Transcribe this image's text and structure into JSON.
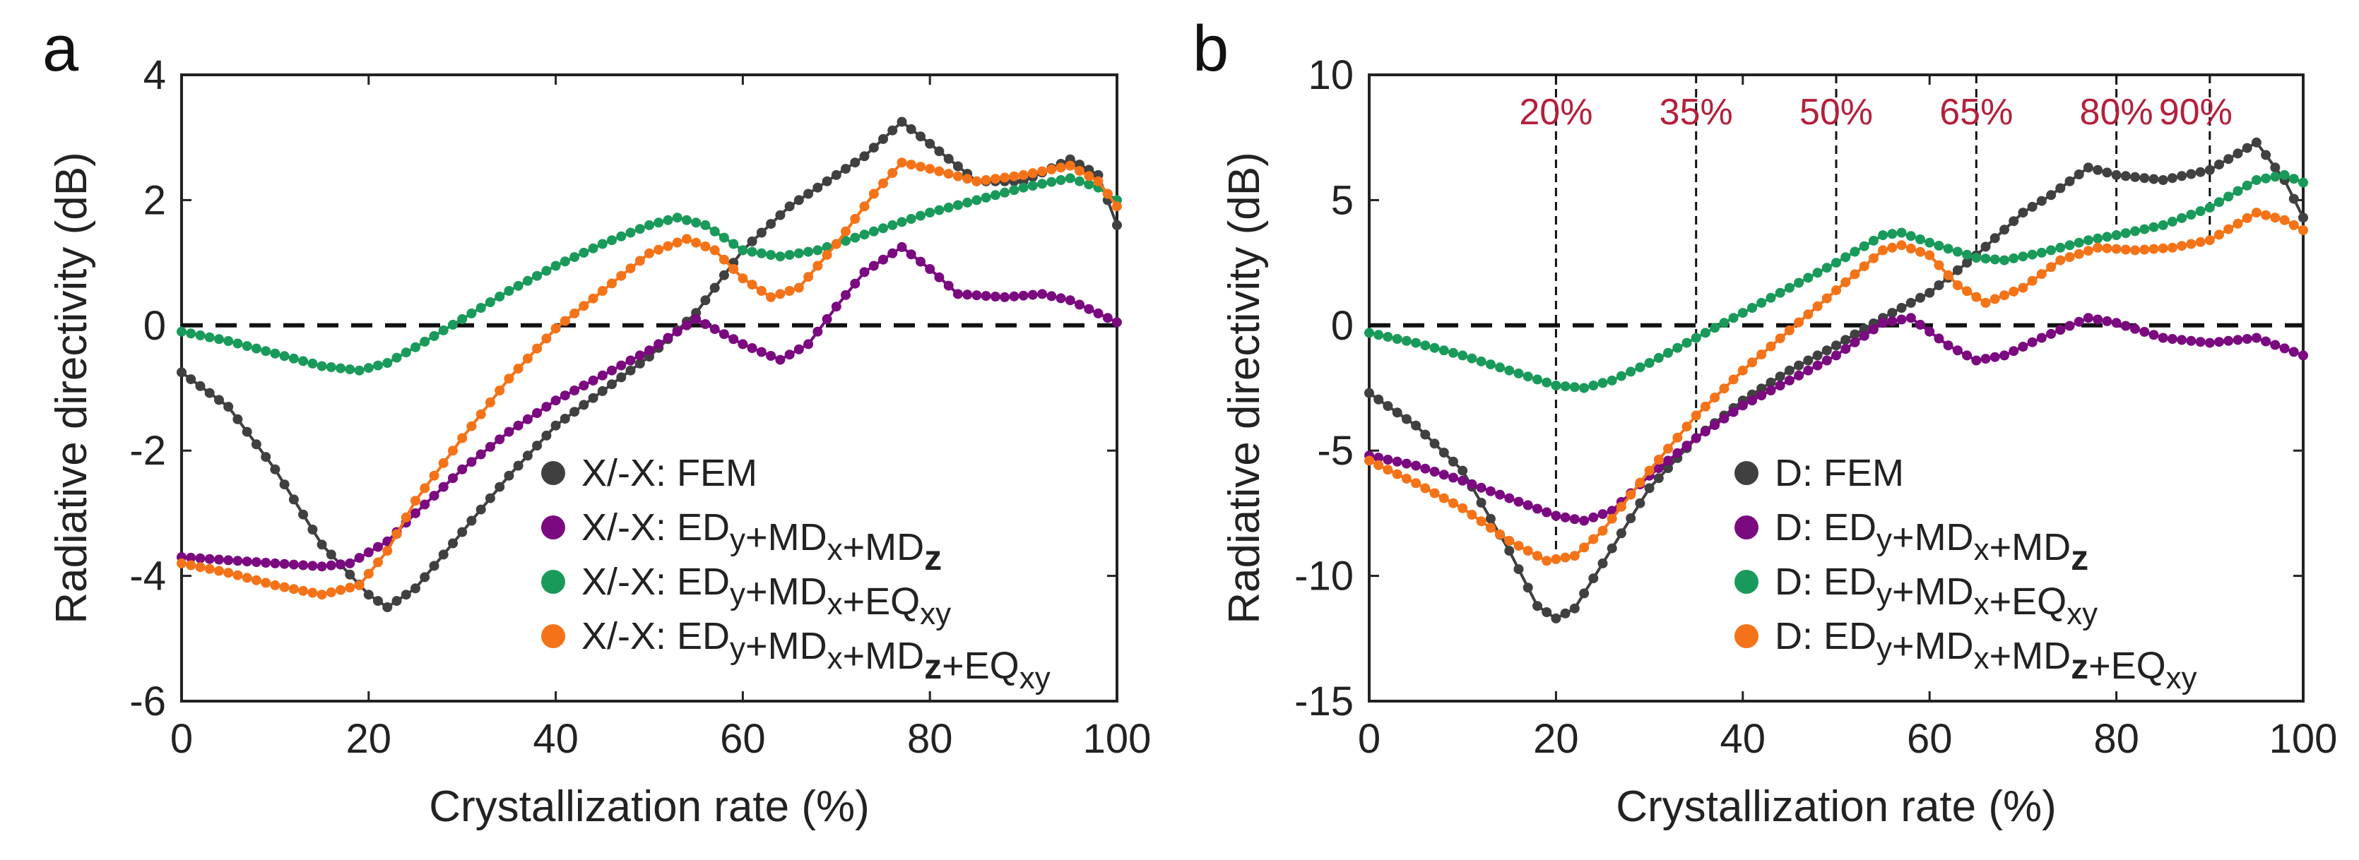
{
  "colors": {
    "fem": "#404040",
    "ed_md_md": "#7b0a80",
    "ed_md_eq": "#1a9a5a",
    "ed_md_md_eq": "#f57318",
    "marker_label": "#b4203a"
  },
  "chart_data": [
    {
      "panel_label": "a",
      "type": "line",
      "xlabel": "Crystallization rate (%)",
      "ylabel": "Radiative directivity (dB)",
      "xlim": [
        0,
        100
      ],
      "ylim": [
        -6,
        4
      ],
      "xticks": [
        "0",
        "20",
        "40",
        "60",
        "80",
        "100"
      ],
      "yticks": [
        "-6",
        "-4",
        "-2",
        "0",
        "2",
        "4"
      ],
      "zero_line": true,
      "legend_position": "lower-right",
      "series": [
        {
          "name": "X/-X: FEM",
          "legend": {
            "prefix": "X/-X: ",
            "terms": [
              {
                "base": "FEM",
                "sub": ""
              }
            ]
          },
          "color": "#404040",
          "points": [
            [
              0,
              -0.75
            ],
            [
              5,
              -1.3
            ],
            [
              10,
              -2.3
            ],
            [
              15,
              -3.5
            ],
            [
              20,
              -4.3
            ],
            [
              22,
              -4.5
            ],
            [
              25,
              -4.2
            ],
            [
              30,
              -3.3
            ],
            [
              35,
              -2.4
            ],
            [
              40,
              -1.6
            ],
            [
              45,
              -1.05
            ],
            [
              50,
              -0.5
            ],
            [
              55,
              0.2
            ],
            [
              60,
              1.2
            ],
            [
              65,
              1.9
            ],
            [
              70,
              2.4
            ],
            [
              73,
              2.7
            ],
            [
              77,
              3.25
            ],
            [
              80,
              2.9
            ],
            [
              85,
              2.3
            ],
            [
              90,
              2.3
            ],
            [
              95,
              2.65
            ],
            [
              98,
              2.4
            ],
            [
              100,
              1.6
            ]
          ]
        },
        {
          "name": "X/-X: EDy+MDx+MDz",
          "legend": {
            "prefix": "X/-X: ",
            "terms": [
              {
                "base": "ED",
                "sub": "y"
              },
              {
                "base": "MD",
                "sub": "x"
              },
              {
                "base": "MD",
                "sub": "z"
              }
            ]
          },
          "color": "#7b0a80",
          "points": [
            [
              0,
              -3.7
            ],
            [
              5,
              -3.75
            ],
            [
              10,
              -3.8
            ],
            [
              15,
              -3.85
            ],
            [
              18,
              -3.8
            ],
            [
              22,
              -3.45
            ],
            [
              25,
              -3.0
            ],
            [
              30,
              -2.3
            ],
            [
              35,
              -1.7
            ],
            [
              40,
              -1.2
            ],
            [
              45,
              -0.8
            ],
            [
              50,
              -0.4
            ],
            [
              55,
              0.1
            ],
            [
              60,
              -0.3
            ],
            [
              64,
              -0.55
            ],
            [
              67,
              -0.3
            ],
            [
              70,
              0.3
            ],
            [
              73,
              0.85
            ],
            [
              77,
              1.25
            ],
            [
              80,
              0.9
            ],
            [
              83,
              0.5
            ],
            [
              88,
              0.45
            ],
            [
              92,
              0.5
            ],
            [
              95,
              0.4
            ],
            [
              100,
              0.05
            ]
          ]
        },
        {
          "name": "X/-X: EDy+MDx+EQxy",
          "legend": {
            "prefix": "X/-X: ",
            "terms": [
              {
                "base": "ED",
                "sub": "y"
              },
              {
                "base": "MD",
                "sub": "x"
              },
              {
                "base": "EQ",
                "sub": "xy"
              }
            ]
          },
          "color": "#1a9a5a",
          "points": [
            [
              0,
              -0.1
            ],
            [
              5,
              -0.25
            ],
            [
              10,
              -0.45
            ],
            [
              15,
              -0.65
            ],
            [
              19,
              -0.72
            ],
            [
              22,
              -0.6
            ],
            [
              25,
              -0.35
            ],
            [
              30,
              0.1
            ],
            [
              35,
              0.55
            ],
            [
              40,
              0.95
            ],
            [
              45,
              1.3
            ],
            [
              50,
              1.6
            ],
            [
              53,
              1.72
            ],
            [
              56,
              1.6
            ],
            [
              60,
              1.2
            ],
            [
              64,
              1.1
            ],
            [
              68,
              1.2
            ],
            [
              72,
              1.4
            ],
            [
              76,
              1.6
            ],
            [
              80,
              1.8
            ],
            [
              85,
              2.0
            ],
            [
              90,
              2.2
            ],
            [
              95,
              2.35
            ],
            [
              98,
              2.2
            ],
            [
              100,
              2.0
            ]
          ]
        },
        {
          "name": "X/-X: EDy+MDx+MDz+EQxy",
          "legend": {
            "prefix": "X/-X: ",
            "terms": [
              {
                "base": "ED",
                "sub": "y"
              },
              {
                "base": "MD",
                "sub": "x"
              },
              {
                "base": "MD",
                "sub": "z"
              },
              {
                "base": "EQ",
                "sub": "xy"
              }
            ]
          },
          "color": "#f57318",
          "points": [
            [
              0,
              -3.8
            ],
            [
              5,
              -3.95
            ],
            [
              10,
              -4.15
            ],
            [
              15,
              -4.3
            ],
            [
              19,
              -4.15
            ],
            [
              22,
              -3.6
            ],
            [
              25,
              -2.8
            ],
            [
              30,
              -1.8
            ],
            [
              35,
              -0.85
            ],
            [
              40,
              -0.05
            ],
            [
              45,
              0.55
            ],
            [
              50,
              1.15
            ],
            [
              54,
              1.38
            ],
            [
              57,
              1.2
            ],
            [
              60,
              0.75
            ],
            [
              63,
              0.45
            ],
            [
              66,
              0.6
            ],
            [
              70,
              1.3
            ],
            [
              74,
              2.1
            ],
            [
              77,
              2.6
            ],
            [
              80,
              2.5
            ],
            [
              85,
              2.3
            ],
            [
              90,
              2.4
            ],
            [
              95,
              2.55
            ],
            [
              98,
              2.3
            ],
            [
              100,
              1.9
            ]
          ]
        }
      ]
    },
    {
      "panel_label": "b",
      "type": "line",
      "xlabel": "Crystallization rate (%)",
      "ylabel": "Radiative directivity (dB)",
      "xlim": [
        0,
        100
      ],
      "ylim": [
        -15,
        10
      ],
      "xticks": [
        "0",
        "20",
        "40",
        "60",
        "80",
        "100"
      ],
      "yticks": [
        "-15",
        "-10",
        "-5",
        "0",
        "5",
        "10"
      ],
      "zero_line": true,
      "legend_position": "lower-right",
      "markers": [
        {
          "x": 20,
          "label": "20%",
          "y_low": -9.3
        },
        {
          "x": 35,
          "label": "35%",
          "y_low": -4.5
        },
        {
          "x": 50,
          "label": "50%",
          "y_low": 1.5
        },
        {
          "x": 65,
          "label": "65%",
          "y_low": 3.0
        },
        {
          "x": 80,
          "label": "80%",
          "y_low": 3.0
        },
        {
          "x": 90,
          "label": "90%",
          "y_low": 3.3
        }
      ],
      "series": [
        {
          "name": "D: FEM",
          "legend": {
            "prefix": "D: ",
            "terms": [
              {
                "base": "FEM",
                "sub": ""
              }
            ]
          },
          "color": "#404040",
          "points": [
            [
              0,
              -2.7
            ],
            [
              5,
              -4.0
            ],
            [
              10,
              -5.8
            ],
            [
              15,
              -9.0
            ],
            [
              18,
              -11.2
            ],
            [
              20,
              -11.7
            ],
            [
              22,
              -11.3
            ],
            [
              25,
              -9.5
            ],
            [
              30,
              -6.5
            ],
            [
              35,
              -4.5
            ],
            [
              40,
              -3.0
            ],
            [
              45,
              -1.8
            ],
            [
              50,
              -0.8
            ],
            [
              55,
              0.3
            ],
            [
              60,
              1.3
            ],
            [
              65,
              2.8
            ],
            [
              70,
              4.5
            ],
            [
              73,
              5.2
            ],
            [
              77,
              6.3
            ],
            [
              80,
              6.0
            ],
            [
              85,
              5.8
            ],
            [
              90,
              6.2
            ],
            [
              95,
              7.3
            ],
            [
              98,
              5.8
            ],
            [
              100,
              4.3
            ]
          ]
        },
        {
          "name": "D: EDy+MDx+MDz",
          "legend": {
            "prefix": "D: ",
            "terms": [
              {
                "base": "ED",
                "sub": "y"
              },
              {
                "base": "MD",
                "sub": "x"
              },
              {
                "base": "MD",
                "sub": "z"
              }
            ]
          },
          "color": "#7b0a80",
          "points": [
            [
              0,
              -5.2
            ],
            [
              5,
              -5.6
            ],
            [
              10,
              -6.2
            ],
            [
              15,
              -6.9
            ],
            [
              20,
              -7.6
            ],
            [
              23,
              -7.8
            ],
            [
              26,
              -7.4
            ],
            [
              30,
              -6.0
            ],
            [
              35,
              -4.5
            ],
            [
              40,
              -3.2
            ],
            [
              45,
              -2.2
            ],
            [
              50,
              -1.2
            ],
            [
              55,
              0.1
            ],
            [
              58,
              0.3
            ],
            [
              62,
              -0.8
            ],
            [
              65,
              -1.4
            ],
            [
              68,
              -1.2
            ],
            [
              72,
              -0.5
            ],
            [
              77,
              0.3
            ],
            [
              80,
              0.1
            ],
            [
              85,
              -0.5
            ],
            [
              90,
              -0.7
            ],
            [
              95,
              -0.5
            ],
            [
              100,
              -1.2
            ]
          ]
        },
        {
          "name": "D: EDy+MDx+EQxy",
          "legend": {
            "prefix": "D: ",
            "terms": [
              {
                "base": "ED",
                "sub": "y"
              },
              {
                "base": "MD",
                "sub": "x"
              },
              {
                "base": "EQ",
                "sub": "xy"
              }
            ]
          },
          "color": "#1a9a5a",
          "points": [
            [
              0,
              -0.3
            ],
            [
              5,
              -0.7
            ],
            [
              10,
              -1.2
            ],
            [
              15,
              -1.8
            ],
            [
              20,
              -2.4
            ],
            [
              23,
              -2.5
            ],
            [
              26,
              -2.2
            ],
            [
              30,
              -1.5
            ],
            [
              35,
              -0.5
            ],
            [
              40,
              0.5
            ],
            [
              45,
              1.5
            ],
            [
              50,
              2.5
            ],
            [
              55,
              3.6
            ],
            [
              57,
              3.7
            ],
            [
              60,
              3.3
            ],
            [
              65,
              2.7
            ],
            [
              68,
              2.6
            ],
            [
              72,
              2.9
            ],
            [
              77,
              3.4
            ],
            [
              80,
              3.6
            ],
            [
              85,
              4.0
            ],
            [
              90,
              4.7
            ],
            [
              95,
              5.8
            ],
            [
              98,
              6.0
            ],
            [
              100,
              5.7
            ]
          ]
        },
        {
          "name": "D: EDy+MDx+MDz+EQxy",
          "legend": {
            "prefix": "D: ",
            "terms": [
              {
                "base": "ED",
                "sub": "y"
              },
              {
                "base": "MD",
                "sub": "x"
              },
              {
                "base": "MD",
                "sub": "z"
              },
              {
                "base": "EQ",
                "sub": "xy"
              }
            ]
          },
          "color": "#f57318",
          "points": [
            [
              0,
              -5.4
            ],
            [
              5,
              -6.3
            ],
            [
              10,
              -7.3
            ],
            [
              15,
              -8.6
            ],
            [
              19,
              -9.4
            ],
            [
              22,
              -9.2
            ],
            [
              25,
              -8.2
            ],
            [
              30,
              -5.8
            ],
            [
              35,
              -3.6
            ],
            [
              40,
              -1.8
            ],
            [
              45,
              -0.2
            ],
            [
              50,
              1.4
            ],
            [
              55,
              3.0
            ],
            [
              57,
              3.2
            ],
            [
              60,
              2.8
            ],
            [
              63,
              1.6
            ],
            [
              66,
              0.9
            ],
            [
              70,
              1.5
            ],
            [
              74,
              2.6
            ],
            [
              78,
              3.1
            ],
            [
              82,
              3.0
            ],
            [
              86,
              3.1
            ],
            [
              90,
              3.4
            ],
            [
              95,
              4.5
            ],
            [
              98,
              4.2
            ],
            [
              100,
              3.8
            ]
          ]
        }
      ]
    }
  ]
}
